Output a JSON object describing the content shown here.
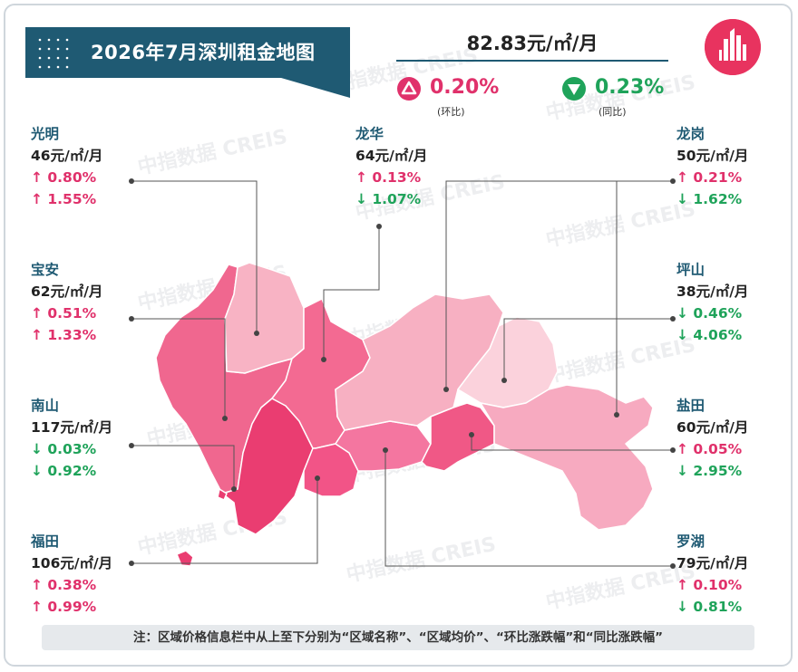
{
  "title": "2026年7月深圳租金地图",
  "summary": {
    "avg_price": "82.83元/㎡/月",
    "mom": {
      "value": "0.20%",
      "label": "(环比)",
      "direction": "up"
    },
    "yoy": {
      "value": "0.23%",
      "label": "(同比)",
      "direction": "down"
    }
  },
  "colors": {
    "up": "#e0316b",
    "down": "#1fa35a",
    "accent": "#1f5a73"
  },
  "districts": {
    "guangming": {
      "name": "光明",
      "price": "46元/㎡/月",
      "mom": "↑ 0.80%",
      "yoy": "↑ 1.55%"
    },
    "longhua": {
      "name": "龙华",
      "price": "64元/㎡/月",
      "mom": "↑ 0.13%",
      "yoy": "↓ 1.07%"
    },
    "longgang": {
      "name": "龙岗",
      "price": "50元/㎡/月",
      "mom": "↑ 0.21%",
      "yoy": "↓ 1.62%"
    },
    "baoan": {
      "name": "宝安",
      "price": "62元/㎡/月",
      "mom": "↑ 0.51%",
      "yoy": "↑ 1.33%"
    },
    "pingshan": {
      "name": "坪山",
      "price": "38元/㎡/月",
      "mom": "↓ 0.46%",
      "yoy": "↓ 4.06%"
    },
    "nanshan": {
      "name": "南山",
      "price": "117元/㎡/月",
      "mom": "↓ 0.03%",
      "yoy": "↓ 0.92%"
    },
    "yantian": {
      "name": "盐田",
      "price": "60元/㎡/月",
      "mom": "↑ 0.05%",
      "yoy": "↓ 2.95%"
    },
    "futian": {
      "name": "福田",
      "price": "106元/㎡/月",
      "mom": "↑ 0.38%",
      "yoy": "↑ 0.99%"
    },
    "luohu": {
      "name": "罗湖",
      "price": "79元/㎡/月",
      "mom": "↑ 0.10%",
      "yoy": "↓ 0.81%"
    }
  },
  "watermark": "中指数据 CREIS",
  "note": "注：区域价格信息栏中从上至下分别为“区域名称”、“区域均价”、“环比涨跌幅”和“同比涨跌幅”"
}
